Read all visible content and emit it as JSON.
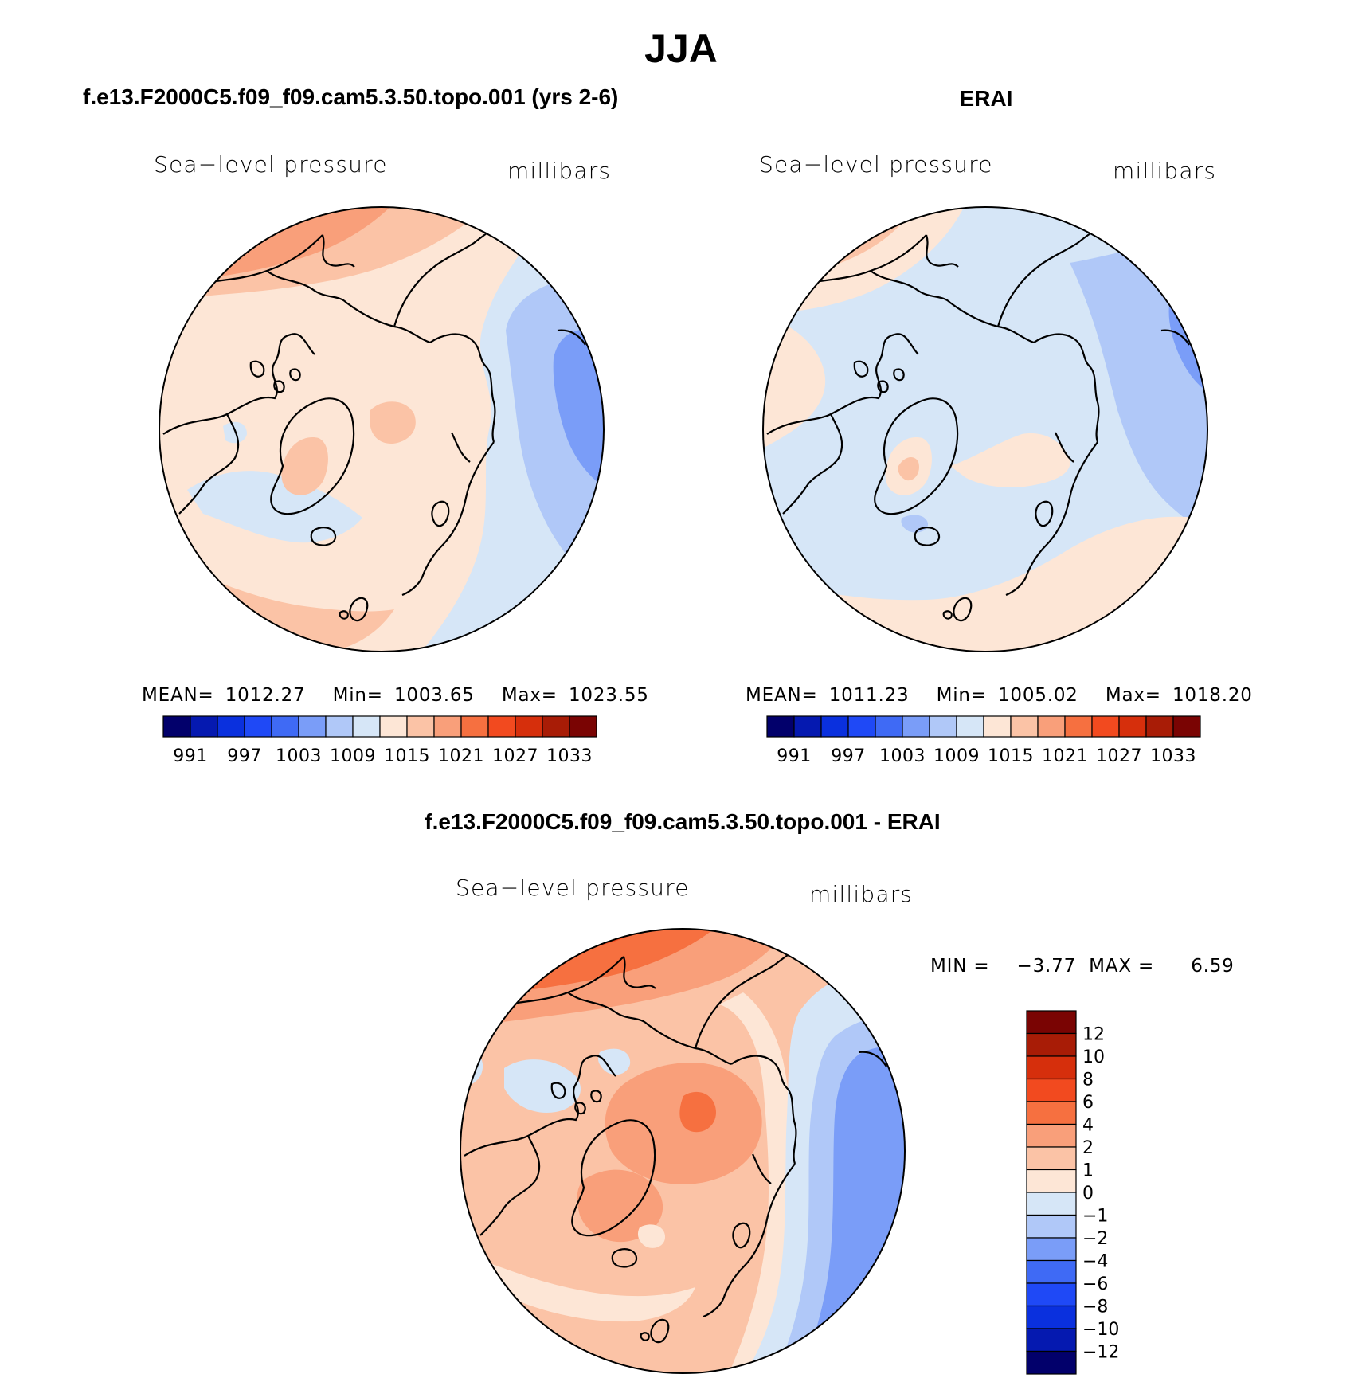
{
  "figure": {
    "title": "JJA"
  },
  "panels": [
    {
      "id": "model",
      "header": "f.e13.F2000C5.f09_f09.cam5.3.50.topo.001 (yrs 2-6)",
      "left_label": "Sea−level pressure",
      "right_label": "millibars",
      "stats": {
        "mean_label": "MEAN=",
        "mean": "1012.27",
        "min_label": "Min=",
        "min": "1003.65",
        "max_label": "Max=",
        "max": "1023.55"
      }
    },
    {
      "id": "erai",
      "header": "ERAI",
      "left_label": "Sea−level pressure",
      "right_label": "millibars",
      "stats": {
        "mean_label": "MEAN=",
        "mean": "1011.23",
        "min_label": "Min=",
        "min": "1005.02",
        "max_label": "Max=",
        "max": "1018.20"
      }
    },
    {
      "id": "diff",
      "header": "f.e13.F2000C5.f09_f09.cam5.3.50.topo.001 - ERAI",
      "left_label": "Sea−level pressure",
      "right_label": "millibars",
      "stats": {
        "min_label": "MIN =",
        "min": "−3.77",
        "max_label": "MAX =",
        "max": "6.59"
      }
    }
  ],
  "colorbars": {
    "absolute": {
      "orientation": "horizontal",
      "colors": [
        "#02006b",
        "#0519b0",
        "#0a30de",
        "#1f49f6",
        "#3f6af5",
        "#7a9df8",
        "#b0c8f8",
        "#d6e6f7",
        "#fde6d6",
        "#fbc3a6",
        "#f99f7a",
        "#f67040",
        "#f24a1f",
        "#d62f0c",
        "#a81c06",
        "#7a0403"
      ],
      "labels": [
        "991",
        "997",
        "1003",
        "1009",
        "1015",
        "1021",
        "1027",
        "1033"
      ]
    },
    "difference": {
      "orientation": "vertical",
      "colors_top_to_bottom": [
        "#7a0403",
        "#a81c06",
        "#d62f0c",
        "#f24a1f",
        "#f67040",
        "#f99f7a",
        "#fbc3a6",
        "#fde6d6",
        "#d6e6f7",
        "#b0c8f8",
        "#7a9df8",
        "#3f6af5",
        "#1f49f6",
        "#0a30de",
        "#0519b0",
        "#02006b"
      ],
      "labels": [
        "12",
        "10",
        "8",
        "6",
        "4",
        "2",
        "1",
        "0",
        "−1",
        "−2",
        "−4",
        "−6",
        "−8",
        "−10",
        "−12"
      ]
    }
  },
  "chart_data": [
    {
      "type": "heatmap",
      "title": "f.e13.F2000C5.f09_f09.cam5.3.50.topo.001 (yrs 2-6)",
      "variable": "Sea−level pressure",
      "units": "millibars",
      "projection": "north-polar stereographic",
      "mean": 1012.27,
      "min": 1003.65,
      "max": 1023.55,
      "levels": [
        991,
        994,
        997,
        1000,
        1003,
        1006,
        1009,
        1012,
        1015,
        1018,
        1021,
        1024,
        1027,
        1030,
        1033
      ]
    },
    {
      "type": "heatmap",
      "title": "ERAI",
      "variable": "Sea−level pressure",
      "units": "millibars",
      "projection": "north-polar stereographic",
      "mean": 1011.23,
      "min": 1005.02,
      "max": 1018.2,
      "levels": [
        991,
        994,
        997,
        1000,
        1003,
        1006,
        1009,
        1012,
        1015,
        1018,
        1021,
        1024,
        1027,
        1030,
        1033
      ]
    },
    {
      "type": "heatmap",
      "title": "f.e13.F2000C5.f09_f09.cam5.3.50.topo.001 - ERAI",
      "variable": "Sea−level pressure",
      "units": "millibars",
      "projection": "north-polar stereographic",
      "min": -3.77,
      "max": 6.59,
      "levels": [
        -12,
        -10,
        -8,
        -6,
        -4,
        -2,
        -1,
        0,
        1,
        2,
        4,
        6,
        8,
        10,
        12
      ]
    }
  ]
}
